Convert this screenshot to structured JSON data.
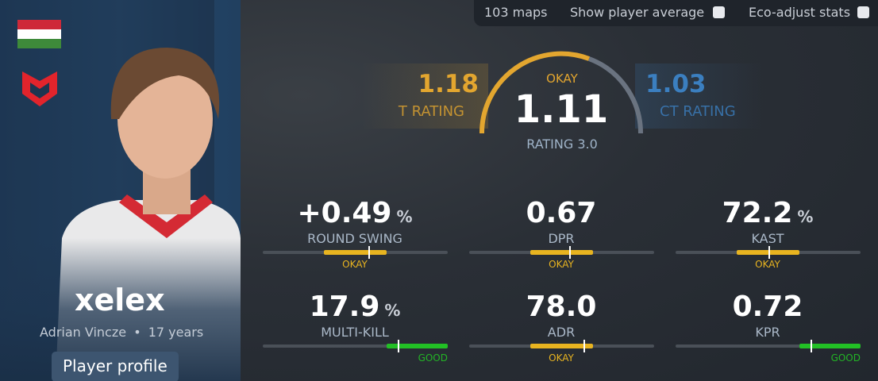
{
  "header": {
    "maps": "103 maps",
    "show_average": "Show player average",
    "eco_adjust": "Eco-adjust stats"
  },
  "player": {
    "name": "xelex",
    "real_name": "Adrian Vincze",
    "separator": "•",
    "age": "17 years",
    "profile_button": "Player profile"
  },
  "ratings": {
    "t": {
      "value": "1.18",
      "label": "T RATING"
    },
    "overall": {
      "verdict": "OKAY",
      "value": "1.11",
      "label": "RATING 3.0"
    },
    "ct": {
      "value": "1.03",
      "label": "CT RATING"
    }
  },
  "stats": [
    {
      "value": "+0.49",
      "unit": "%",
      "label": "ROUND SWING",
      "verdict": "OKAY"
    },
    {
      "value": "0.67",
      "label": "DPR",
      "verdict": "OKAY"
    },
    {
      "value": "72.2",
      "unit": "%",
      "label": "KAST",
      "verdict": "OKAY"
    },
    {
      "value": "17.9",
      "unit": "%",
      "label": "MULTI-KILL",
      "verdict": "GOOD"
    },
    {
      "value": "78.0",
      "label": "ADR",
      "verdict": "OKAY"
    },
    {
      "value": "0.72",
      "label": "KPR",
      "verdict": "GOOD"
    }
  ]
}
